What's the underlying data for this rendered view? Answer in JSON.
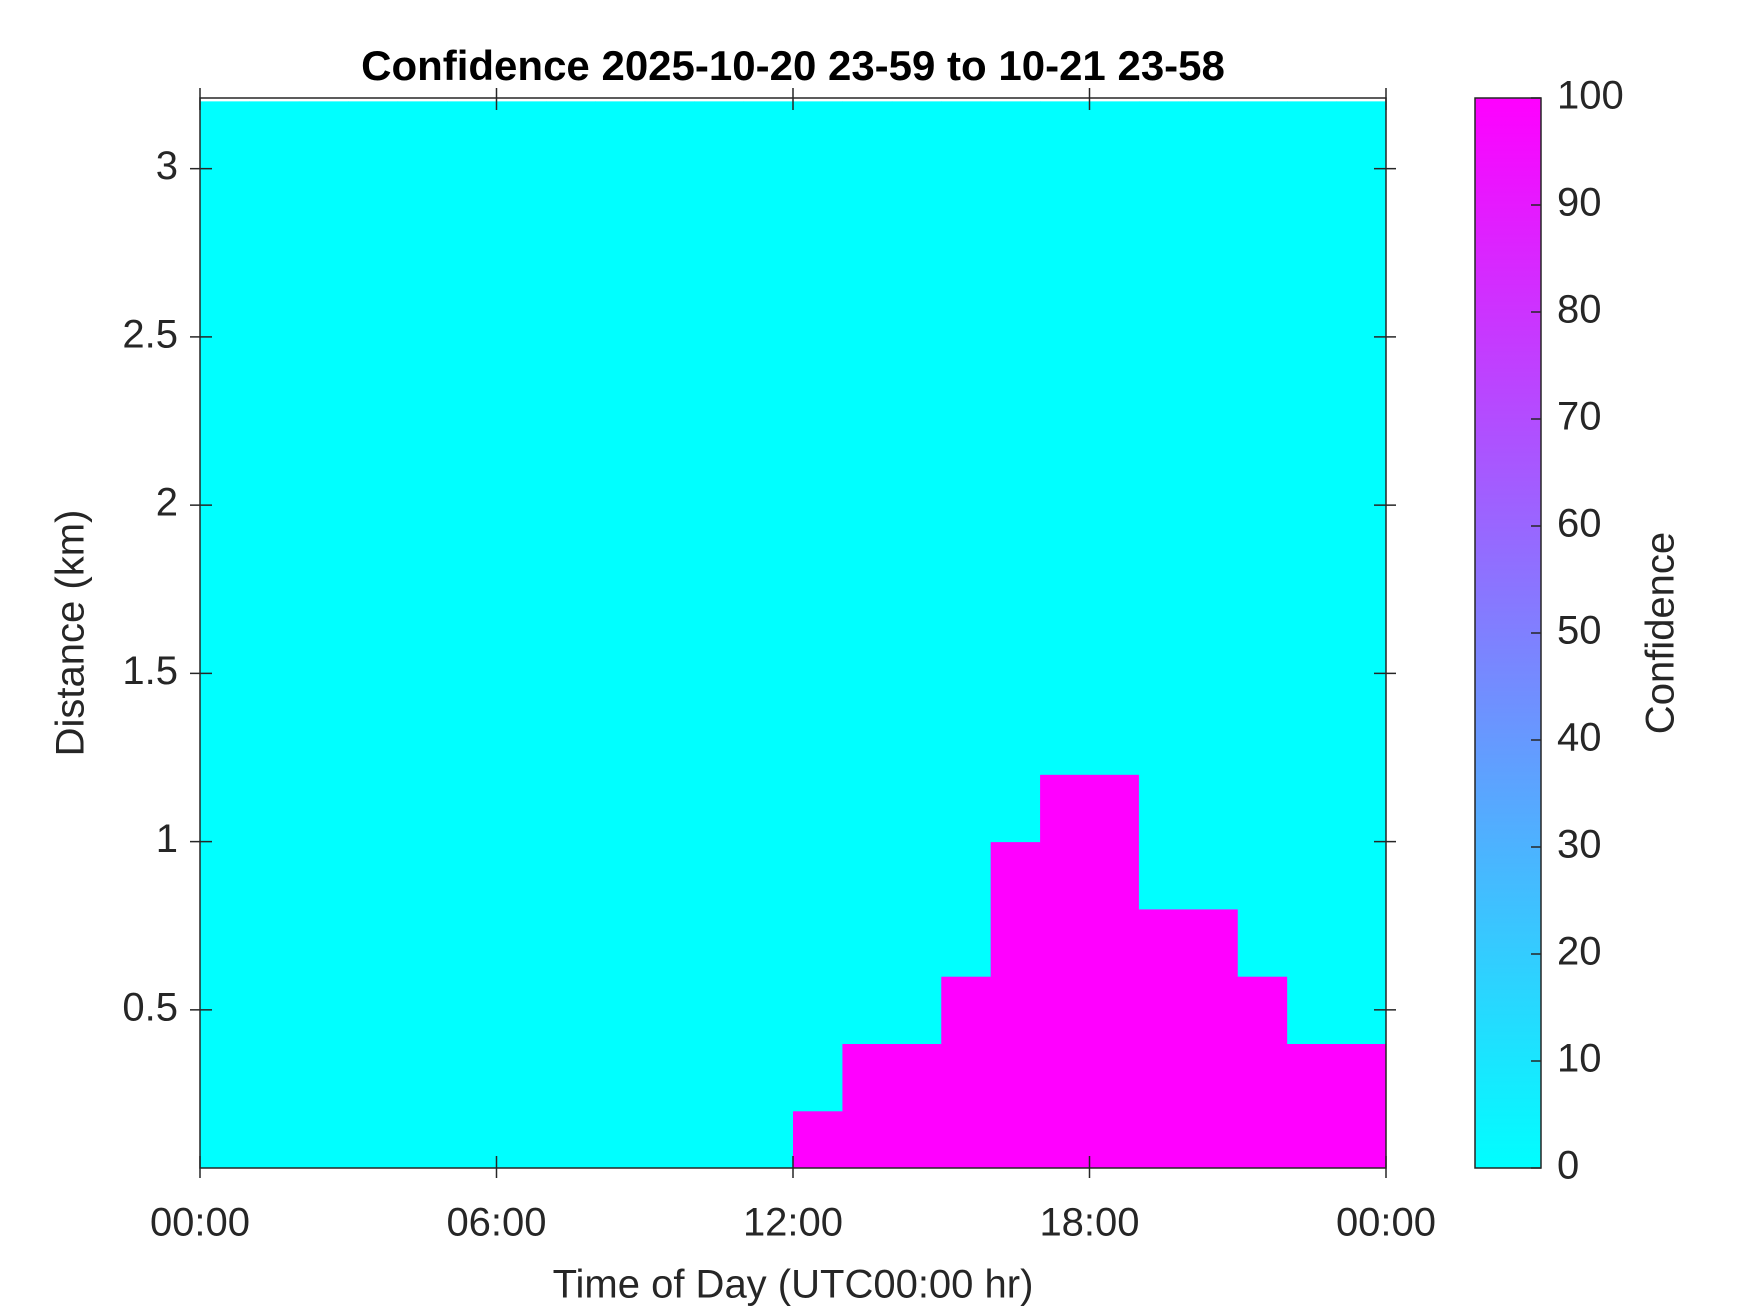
{
  "chart_data": {
    "type": "heatmap",
    "title": "Confidence 2025-10-20 23-59 to 10-21 23-58",
    "x_label": "Time of Day (UTC00:00 hr)",
    "y_label": "Distance (km)",
    "colorbar_label": "Confidence",
    "x": [
      0.5,
      1.5,
      2.5,
      3.5,
      4.5,
      5.5,
      6.5,
      7.5,
      8.5,
      9.5,
      10.5,
      11.5,
      12.5,
      13.5,
      14.5,
      15.5,
      16.5,
      17.5,
      18.5,
      19.5,
      20.5,
      21.5,
      22.5,
      23.5
    ],
    "y": [
      0.1,
      0.3,
      0.5,
      0.7,
      0.9,
      1.1,
      1.3,
      1.5,
      1.7,
      1.9,
      2.1,
      2.3,
      2.5,
      2.7,
      2.9,
      3.1
    ],
    "values": [
      [
        0,
        0,
        0,
        0,
        0,
        0,
        0,
        0,
        0,
        0,
        0,
        0,
        100,
        100,
        100,
        100,
        100,
        100,
        100,
        100,
        100,
        100,
        100,
        100
      ],
      [
        0,
        0,
        0,
        0,
        0,
        0,
        0,
        0,
        0,
        0,
        0,
        0,
        0,
        100,
        100,
        100,
        100,
        100,
        100,
        100,
        100,
        100,
        100,
        100
      ],
      [
        0,
        0,
        0,
        0,
        0,
        0,
        0,
        0,
        0,
        0,
        0,
        0,
        0,
        0,
        0,
        100,
        100,
        100,
        100,
        100,
        100,
        100,
        0,
        0
      ],
      [
        0,
        0,
        0,
        0,
        0,
        0,
        0,
        0,
        0,
        0,
        0,
        0,
        0,
        0,
        0,
        0,
        100,
        100,
        100,
        100,
        100,
        0,
        0,
        0
      ],
      [
        0,
        0,
        0,
        0,
        0,
        0,
        0,
        0,
        0,
        0,
        0,
        0,
        0,
        0,
        0,
        0,
        100,
        100,
        100,
        0,
        0,
        0,
        0,
        0
      ],
      [
        0,
        0,
        0,
        0,
        0,
        0,
        0,
        0,
        0,
        0,
        0,
        0,
        0,
        0,
        0,
        0,
        0,
        100,
        100,
        0,
        0,
        0,
        0,
        0
      ],
      [
        0,
        0,
        0,
        0,
        0,
        0,
        0,
        0,
        0,
        0,
        0,
        0,
        0,
        0,
        0,
        0,
        0,
        0,
        0,
        0,
        0,
        0,
        0,
        0
      ],
      [
        0,
        0,
        0,
        0,
        0,
        0,
        0,
        0,
        0,
        0,
        0,
        0,
        0,
        0,
        0,
        0,
        0,
        0,
        0,
        0,
        0,
        0,
        0,
        0
      ],
      [
        0,
        0,
        0,
        0,
        0,
        0,
        0,
        0,
        0,
        0,
        0,
        0,
        0,
        0,
        0,
        0,
        0,
        0,
        0,
        0,
        0,
        0,
        0,
        0
      ],
      [
        0,
        0,
        0,
        0,
        0,
        0,
        0,
        0,
        0,
        0,
        0,
        0,
        0,
        0,
        0,
        0,
        0,
        0,
        0,
        0,
        0,
        0,
        0,
        0
      ],
      [
        0,
        0,
        0,
        0,
        0,
        0,
        0,
        0,
        0,
        0,
        0,
        0,
        0,
        0,
        0,
        0,
        0,
        0,
        0,
        0,
        0,
        0,
        0,
        0
      ],
      [
        0,
        0,
        0,
        0,
        0,
        0,
        0,
        0,
        0,
        0,
        0,
        0,
        0,
        0,
        0,
        0,
        0,
        0,
        0,
        0,
        0,
        0,
        0,
        0
      ],
      [
        0,
        0,
        0,
        0,
        0,
        0,
        0,
        0,
        0,
        0,
        0,
        0,
        0,
        0,
        0,
        0,
        0,
        0,
        0,
        0,
        0,
        0,
        0,
        0
      ],
      [
        0,
        0,
        0,
        0,
        0,
        0,
        0,
        0,
        0,
        0,
        0,
        0,
        0,
        0,
        0,
        0,
        0,
        0,
        0,
        0,
        0,
        0,
        0,
        0
      ],
      [
        0,
        0,
        0,
        0,
        0,
        0,
        0,
        0,
        0,
        0,
        0,
        0,
        0,
        0,
        0,
        0,
        0,
        0,
        0,
        0,
        0,
        0,
        0,
        0
      ],
      [
        0,
        0,
        0,
        0,
        0,
        0,
        0,
        0,
        0,
        0,
        0,
        0,
        0,
        0,
        0,
        0,
        0,
        0,
        0,
        0,
        0,
        0,
        0,
        0
      ]
    ],
    "cell_width": 1,
    "cell_height": 0.2,
    "xlim": [
      0,
      24
    ],
    "xticks": [
      {
        "value": 0,
        "label": "00:00"
      },
      {
        "value": 6,
        "label": "06:00"
      },
      {
        "value": 12,
        "label": "12:00"
      },
      {
        "value": 18,
        "label": "18:00"
      },
      {
        "value": 24,
        "label": "00:00"
      }
    ],
    "ylim": [
      0.03,
      3.21
    ],
    "yticks": [
      0.5,
      1,
      1.5,
      2,
      2.5,
      3
    ],
    "clim": [
      0,
      100
    ],
    "cticks": [
      0,
      10,
      20,
      30,
      40,
      50,
      60,
      70,
      80,
      90,
      100
    ],
    "colormap": [
      "#00ffff",
      "#ff00ff"
    ],
    "grid": false
  }
}
